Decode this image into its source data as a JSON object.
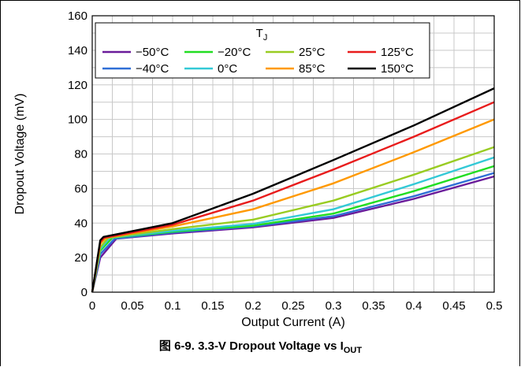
{
  "caption": {
    "prefix": "图 6-9. 3.3-V Dropout Voltage vs I",
    "sub": "OUT"
  },
  "chart_data": {
    "type": "line",
    "title": "",
    "xlabel": "Output Current (A)",
    "ylabel": "Dropout Voltage (mV)",
    "xlim": [
      0,
      0.5
    ],
    "ylim": [
      0,
      160
    ],
    "xticks": [
      0,
      0.05,
      0.1,
      0.15,
      0.2,
      0.25,
      0.3,
      0.35,
      0.4,
      0.45,
      0.5
    ],
    "xtick_labels": [
      "0",
      "0.05",
      "0.1",
      "0.15",
      "0.2",
      "0.25",
      "0.3",
      "0.35",
      "0.4",
      "0.45",
      "0.5"
    ],
    "yticks": [
      0,
      20,
      40,
      60,
      80,
      100,
      120,
      140,
      160
    ],
    "grid": true,
    "legend": {
      "title_main": "T",
      "title_sub": "J",
      "placement": "top",
      "columns": 4
    },
    "series": [
      {
        "name": "−50°C",
        "color": "#6a1b9a",
        "x": [
          0,
          0.01,
          0.03,
          0.1,
          0.2,
          0.3,
          0.4,
          0.5
        ],
        "y": [
          0,
          20,
          31,
          34,
          37.5,
          43,
          54,
          67
        ]
      },
      {
        "name": "−40°C",
        "color": "#2f6fd6",
        "x": [
          0,
          0.01,
          0.028,
          0.1,
          0.2,
          0.3,
          0.4,
          0.5
        ],
        "y": [
          0,
          22,
          31,
          34.5,
          38,
          44,
          55.5,
          69
        ]
      },
      {
        "name": "−20°C",
        "color": "#22dd22",
        "x": [
          0,
          0.01,
          0.025,
          0.1,
          0.2,
          0.3,
          0.4,
          0.5
        ],
        "y": [
          0,
          24,
          31.5,
          35,
          38.5,
          45.5,
          58.5,
          73
        ]
      },
      {
        "name": "0°C",
        "color": "#33c9d6",
        "x": [
          0,
          0.01,
          0.022,
          0.1,
          0.2,
          0.3,
          0.4,
          0.5
        ],
        "y": [
          0,
          25,
          31.5,
          35.5,
          39.5,
          48,
          62.5,
          78
        ]
      },
      {
        "name": "25°C",
        "color": "#99cc22",
        "x": [
          0,
          0.01,
          0.02,
          0.1,
          0.2,
          0.3,
          0.4,
          0.5
        ],
        "y": [
          0,
          26,
          31.5,
          36.5,
          42,
          53,
          68,
          84
        ]
      },
      {
        "name": "85°C",
        "color": "#ff9900",
        "x": [
          0,
          0.01,
          0.017,
          0.1,
          0.2,
          0.3,
          0.4,
          0.5
        ],
        "y": [
          0,
          28,
          31.5,
          38,
          48,
          63,
          81,
          100
        ]
      },
      {
        "name": "125°C",
        "color": "#e81c1c",
        "x": [
          0,
          0.01,
          0.015,
          0.1,
          0.2,
          0.3,
          0.4,
          0.5
        ],
        "y": [
          0,
          29,
          31.5,
          39,
          53,
          71,
          90,
          110
        ]
      },
      {
        "name": "150°C",
        "color": "#000000",
        "x": [
          0,
          0.01,
          0.014,
          0.1,
          0.2,
          0.3,
          0.4,
          0.5
        ],
        "y": [
          0,
          30,
          32,
          40,
          57,
          76.5,
          96.5,
          118
        ]
      }
    ]
  }
}
